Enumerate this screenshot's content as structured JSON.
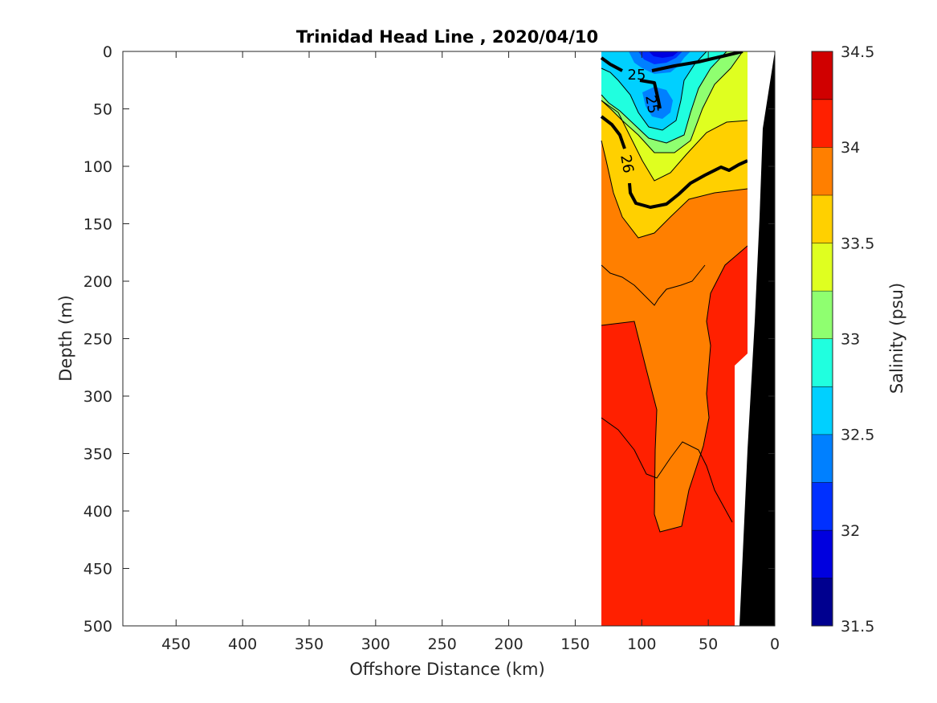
{
  "chart_data": {
    "type": "contour",
    "title": "Trinidad Head Line , 2020/04/10",
    "xlabel": "Offshore Distance (km)",
    "ylabel": "Depth (m)",
    "xlim": [
      490,
      0
    ],
    "ylim": [
      0,
      500
    ],
    "xticks": [
      450,
      400,
      350,
      300,
      250,
      200,
      150,
      100,
      50,
      0
    ],
    "yticks": [
      0,
      50,
      100,
      150,
      200,
      250,
      300,
      350,
      400,
      450,
      500
    ],
    "colorbar": {
      "label": "Salinity (psu)",
      "range": [
        31.5,
        34.5
      ],
      "ticks": [
        34.5,
        34,
        33.5,
        33,
        32.5,
        32,
        31.5
      ],
      "levels": [
        31.5,
        31.75,
        32,
        32.25,
        32.5,
        32.75,
        33,
        33.25,
        33.5,
        33.75,
        34,
        34.25,
        34.5
      ],
      "colors": [
        "#00008f",
        "#0000df",
        "#0030ff",
        "#0080ff",
        "#00d0ff",
        "#20ffdf",
        "#8fff70",
        "#dfff20",
        "#ffd000",
        "#ff7f00",
        "#ff2000",
        "#d00000"
      ]
    },
    "density_contour_labels": [
      "25",
      "25",
      "26"
    ],
    "data_extent_km": [
      130,
      20
    ],
    "bathymetry_color": "#000000"
  }
}
